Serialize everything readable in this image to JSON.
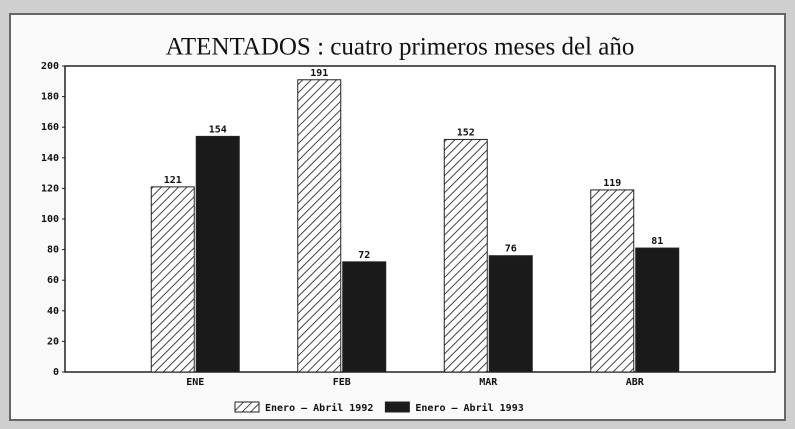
{
  "chart_data": {
    "type": "bar",
    "title": "ATENTADOS : cuatro primeros meses del año",
    "categories": [
      "ENE",
      "FEB",
      "MAR",
      "ABR"
    ],
    "series": [
      {
        "name": "Enero – Abril 1992",
        "color": "#444444",
        "hatch": true,
        "values": [
          121,
          191,
          152,
          119
        ]
      },
      {
        "name": "Enero – Abril 1993",
        "color": "#1a1a1a",
        "hatch": false,
        "values": [
          154,
          72,
          76,
          81
        ]
      }
    ],
    "ylim": [
      0,
      200
    ],
    "yticks": [
      0,
      20,
      40,
      60,
      80,
      100,
      120,
      140,
      160,
      180,
      200
    ]
  }
}
